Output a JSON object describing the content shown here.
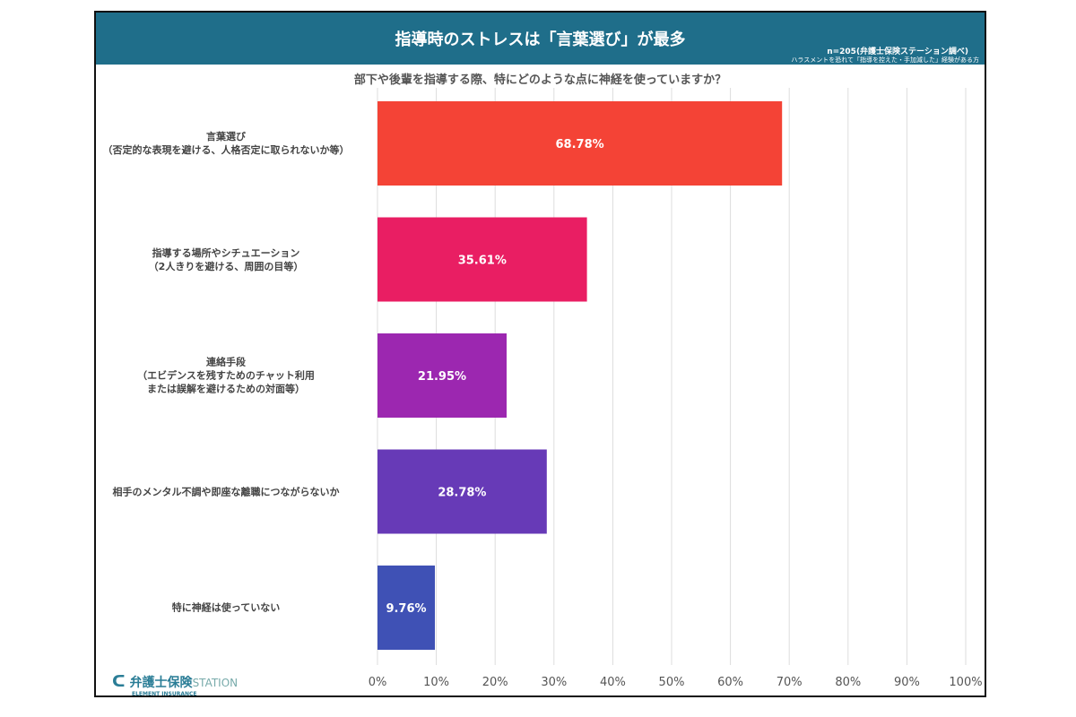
{
  "header": {
    "title": "指導時のストレスは「言葉選び」が最多",
    "n": "n=205(弁護士保険ステーション調べ)",
    "subnote": "ハラスメントを恐れて「指導を控えた・手加減した」経験がある方"
  },
  "logo": {
    "main": "弁護士保険",
    "suffix": "STATION",
    "sub": "ELEMENT INSURANCE"
  },
  "chart_data": {
    "type": "bar",
    "orientation": "horizontal",
    "title": "部下や後輩を指導する際、特にどのような点に神経を使っていますか？",
    "categories": [
      [
        "言葉選び",
        "（否定的な表現を避ける、人格否定に取られないか等）"
      ],
      [
        "指導する場所やシチュエーション",
        "（2人きりを避ける、周囲の目等）"
      ],
      [
        "連絡手段",
        "（エビデンスを残すためのチャット利用",
        "または誤解を避けるための対面等）"
      ],
      [
        "相手のメンタル不調や即座な離職につながらないか"
      ],
      [
        "特に神経は使っていない"
      ]
    ],
    "values": [
      68.78,
      35.61,
      21.95,
      28.78,
      9.76
    ],
    "data_labels": [
      "68.78%",
      "35.61%",
      "21.95%",
      "28.78%",
      "9.76%"
    ],
    "colors": [
      "#f44336",
      "#e91e63",
      "#9c27b0",
      "#673ab7",
      "#3f51b5"
    ],
    "xlim": [
      0,
      100
    ],
    "ticks": [
      "0%",
      "10%",
      "20%",
      "30%",
      "40%",
      "50%",
      "60%",
      "70%",
      "80%",
      "90%",
      "100%"
    ],
    "grid": true
  }
}
